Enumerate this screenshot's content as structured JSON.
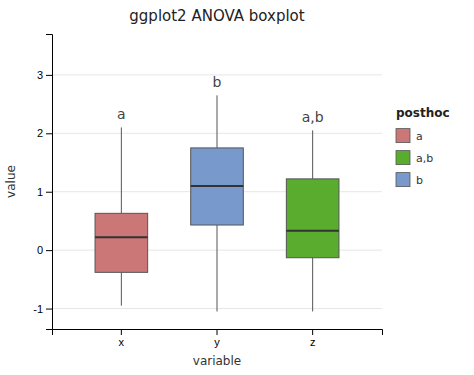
{
  "chart_data": {
    "type": "box",
    "title": "ggplot2 ANOVA boxplot",
    "xlabel": "variable",
    "ylabel": "value",
    "categories": [
      "x",
      "y",
      "z"
    ],
    "boxes": [
      {
        "q1": -0.38,
        "median": 0.22,
        "q3": 0.63,
        "whislo": -0.95,
        "whishi": 2.1
      },
      {
        "q1": 0.43,
        "median": 1.1,
        "q3": 1.75,
        "whislo": -1.05,
        "whishi": 2.65
      },
      {
        "q1": -0.13,
        "median": 0.33,
        "q3": 1.22,
        "whislo": -1.05,
        "whishi": 2.05
      }
    ],
    "colors": [
      "#cc7777",
      "#7799cc",
      "#5aac2e"
    ],
    "annotations": [
      "a",
      "b",
      "a,b"
    ],
    "ylim": [
      -1.35,
      3.7
    ],
    "yticks": [
      -1,
      0,
      1,
      2,
      3
    ],
    "grid": true,
    "legend": "right",
    "legend_title": "posthoc",
    "legend_entries": [
      {
        "label": "a",
        "color": "#cc7777"
      },
      {
        "label": "a,b",
        "color": "#5aac2e"
      },
      {
        "label": "b",
        "color": "#7799cc"
      }
    ]
  }
}
